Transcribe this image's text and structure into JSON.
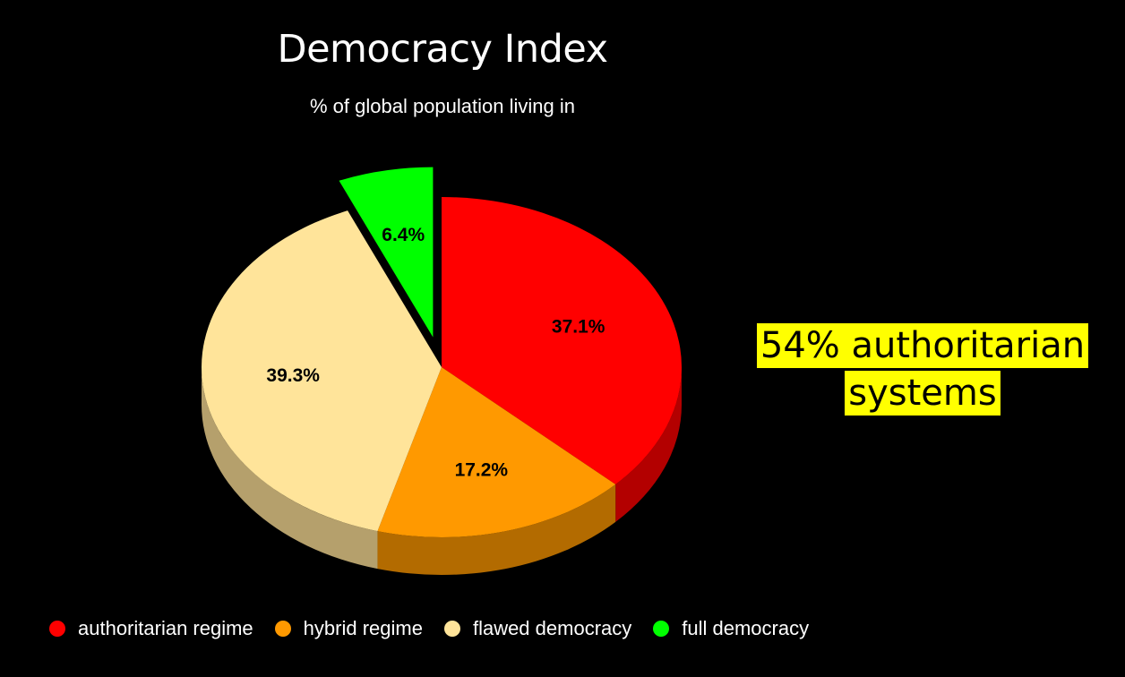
{
  "chart_data": {
    "type": "pie",
    "title": "Democracy Index",
    "subtitle": "% of global population living in",
    "three_d": true,
    "slices": [
      {
        "name": "authoritarian regime",
        "value": 37.1,
        "label": "37.1%",
        "color": "#ff0000",
        "side_color": "#b30000",
        "exploded": false
      },
      {
        "name": "hybrid regime",
        "value": 17.2,
        "label": "17.2%",
        "color": "#ff9900",
        "side_color": "#b36b00",
        "exploded": false
      },
      {
        "name": "flawed democracy",
        "value": 39.3,
        "label": "39.3%",
        "color": "#ffe49a",
        "side_color": "#b5a06c",
        "exploded": false
      },
      {
        "name": "full democracy",
        "value": 6.4,
        "label": "6.4%",
        "color": "#00ff00",
        "side_color": "#00a800",
        "exploded": true
      }
    ],
    "legend_placement": "bottom"
  },
  "callout": {
    "line1": "54% authoritarian",
    "line2": "systems",
    "highlight_color": "#ffff00"
  },
  "legend": {
    "items": [
      {
        "label": "authoritarian regime",
        "color": "#ff0000"
      },
      {
        "label": "hybrid regime",
        "color": "#ff9900"
      },
      {
        "label": "flawed democracy",
        "color": "#ffe49a"
      },
      {
        "label": "full democracy",
        "color": "#00ff00"
      }
    ]
  }
}
